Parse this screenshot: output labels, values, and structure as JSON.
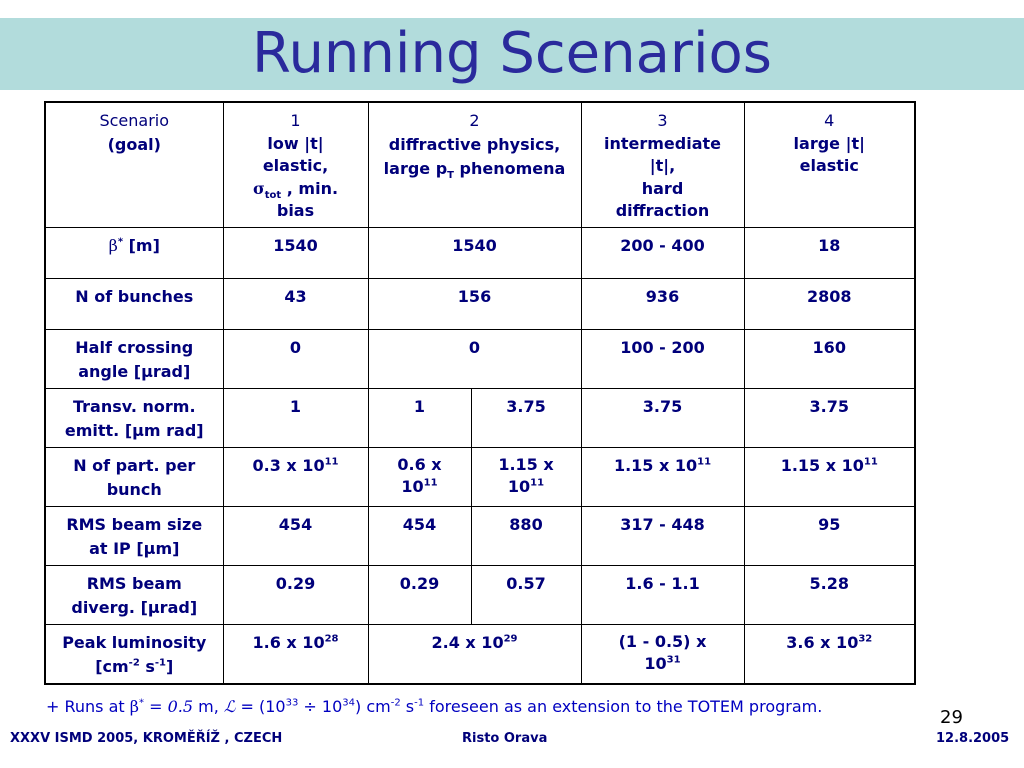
{
  "slide": {
    "title": "Running Scenarios",
    "page_number": "29",
    "footer_left": "XXXV ISMD 2005, KROMĚŘÍŽ , CZECH",
    "footer_center": "Risto Orava",
    "footer_right": "12.8.2005"
  },
  "header": {
    "scenario_label": "Scenario",
    "goal_label": "(goal)",
    "s1_num": "1",
    "s1_l1": "low |t|",
    "s1_l2": "elastic,",
    "s1_sigma": "σ",
    "s1_tot": "tot",
    "s1_l3": " , min.",
    "s1_l4": "bias",
    "s2_num": "2",
    "s2_l1": "diffractive physics,",
    "s2_l2a": "large p",
    "s2_l2sub": "T",
    "s2_l2b": " phenomena",
    "s3_num": "3",
    "s3_l1": "intermediate",
    "s3_l2": "|t|,",
    "s3_l3": "hard",
    "s3_l4": "diffraction",
    "s4_num": "4",
    "s4_l1": "large |t|",
    "s4_l2": "elastic"
  },
  "rows": {
    "beta": {
      "sym": "β",
      "star": "*",
      "unit": " [m]",
      "c1": "1540",
      "c2": "1540",
      "c3": "200 - 400",
      "c4": "18"
    },
    "bunches": {
      "label": "N of bunches",
      "c1": "43",
      "c2": "156",
      "c3": "936",
      "c4": "2808"
    },
    "angle": {
      "label_a": "Half crossing",
      "label_b": "angle [",
      "mu": "μ",
      "label_c": "rad]",
      "c1": "0",
      "c2": "0",
      "c3": "100 - 200",
      "c4": "160"
    },
    "emitt": {
      "label_a": "Transv. norm.",
      "label_b": "emitt. [",
      "mu": "μ",
      "label_c": "m rad]",
      "c1": "1",
      "c2a": "1",
      "c2b": "3.75",
      "c3": "3.75",
      "c4": "3.75"
    },
    "npart": {
      "label_a": "N of part. per",
      "label_b": "bunch",
      "c1_base": "0.3 x 10",
      "c1_exp": "11",
      "c2a_l1": "0.6 x",
      "c2a_base": "10",
      "c2a_exp": "11",
      "c2b_l1": "1.15 x",
      "c2b_base": "10",
      "c2b_exp": "11",
      "c3_base": "1.15 x 10",
      "c3_exp": "11",
      "c4_base": "1.15 x 10",
      "c4_exp": "11"
    },
    "size": {
      "label_a": "RMS beam size",
      "label_b": "at IP [",
      "mu": "μ",
      "label_c": "m]",
      "c1": "454",
      "c2a": "454",
      "c2b": "880",
      "c3": "317 - 448",
      "c4": "95"
    },
    "diverg": {
      "label_a": "RMS beam",
      "label_b": "diverg. [",
      "mu": "μ",
      "label_c": "rad]",
      "c1": "0.29",
      "c2a": "0.29",
      "c2b": "0.57",
      "c3": "1.6 - 1.1",
      "c4": "5.28"
    },
    "lumi": {
      "label_a": "Peak luminosity",
      "label_b1": "[cm",
      "label_b1e": "-2",
      "label_b2": " s",
      "label_b2e": "-1",
      "label_b3": "]",
      "c1_base": "1.6 x 10",
      "c1_exp": "28",
      "c2_base": "2.4 x 10",
      "c2_exp": "29",
      "c3_l1": "(1 - 0.5) x",
      "c3_base": "10",
      "c3_exp": "31",
      "c4_base": "3.6 x 10",
      "c4_exp": "32"
    }
  },
  "footnote": {
    "t1": "+ Runs at ",
    "beta": "β",
    "star": "*",
    "t2": " = 0.5",
    "t3": " m, ",
    "lsym": "ℒ",
    "t4": " = (10",
    "e1": "33",
    "t5": "  ÷ 10",
    "e2": "34",
    "t6": ") cm",
    "e3": "-2",
    "t7": " s",
    "e4": "-1",
    "t8": " foreseen as an extension to the TOTEM program."
  }
}
